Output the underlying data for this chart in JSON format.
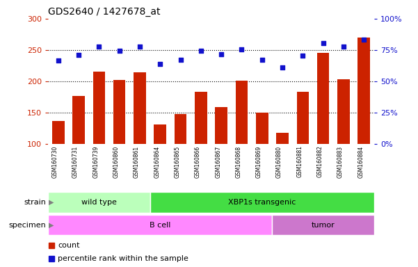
{
  "title": "GDS2640 / 1427678_at",
  "samples": [
    "GSM160730",
    "GSM160731",
    "GSM160739",
    "GSM160860",
    "GSM160861",
    "GSM160864",
    "GSM160865",
    "GSM160866",
    "GSM160867",
    "GSM160868",
    "GSM160869",
    "GSM160880",
    "GSM160881",
    "GSM160882",
    "GSM160883",
    "GSM160884"
  ],
  "counts": [
    137,
    177,
    216,
    202,
    214,
    131,
    148,
    183,
    159,
    201,
    150,
    118,
    183,
    246,
    204,
    270
  ],
  "percentiles": [
    233,
    242,
    256,
    249,
    256,
    228,
    235,
    249,
    243,
    251,
    235,
    222,
    241,
    261,
    256,
    267
  ],
  "ylim_left": [
    100,
    300
  ],
  "ylim_right": [
    0,
    100
  ],
  "yticks_left": [
    100,
    150,
    200,
    250,
    300
  ],
  "yticks_right": [
    0,
    25,
    50,
    75,
    100
  ],
  "ytick_labels_right": [
    "0%",
    "25%",
    "50%",
    "75%",
    "100%"
  ],
  "bar_color": "#cc2200",
  "dot_color": "#1111cc",
  "grid_color": "#000000",
  "strain_groups": [
    {
      "label": "wild type",
      "start": 0,
      "end": 5,
      "color": "#bbffbb"
    },
    {
      "label": "XBP1s transgenic",
      "start": 5,
      "end": 16,
      "color": "#44dd44"
    }
  ],
  "specimen_groups": [
    {
      "label": "B cell",
      "start": 0,
      "end": 11,
      "color": "#ff88ff"
    },
    {
      "label": "tumor",
      "start": 11,
      "end": 16,
      "color": "#cc77cc"
    }
  ],
  "tick_bg_color": "#cccccc",
  "left_axis_color": "#cc2200",
  "right_axis_color": "#1111cc",
  "background_color": "#ffffff"
}
